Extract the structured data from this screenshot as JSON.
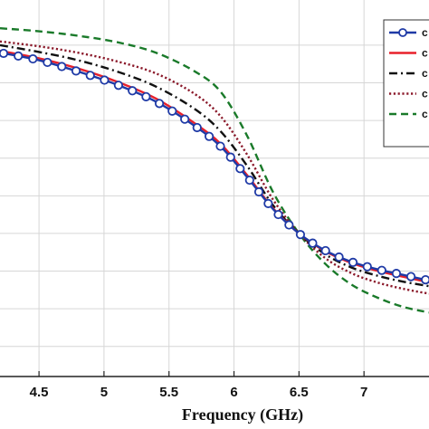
{
  "chart_data": {
    "type": "line",
    "xlabel": "Frequency (GHz)",
    "ylabel": "",
    "xlim": [
      4.2,
      7.5
    ],
    "ylim": [
      0,
      1
    ],
    "x_ticks": [
      "4.5",
      "5",
      "5.5",
      "6",
      "6.5",
      "7"
    ],
    "x_tick_values": [
      4.5,
      5,
      5.5,
      6,
      6.5,
      7
    ],
    "y_grid_values": [
      0.08,
      0.18,
      0.28,
      0.38,
      0.48,
      0.58,
      0.68,
      0.78,
      0.88
    ],
    "grid": true,
    "legend_position": "top-right",
    "series": [
      {
        "name": "c",
        "color": "#1f3aa6",
        "style": "solid-circle-markers",
        "x": [
          4.2,
          4.5,
          4.8,
          5.1,
          5.4,
          5.7,
          5.9,
          6.1,
          6.3,
          6.5,
          6.7,
          6.9,
          7.1,
          7.3,
          7.5
        ],
        "y": [
          0.86,
          0.84,
          0.81,
          0.775,
          0.73,
          0.665,
          0.61,
          0.53,
          0.445,
          0.38,
          0.335,
          0.305,
          0.285,
          0.27,
          0.255
        ]
      },
      {
        "name": "c",
        "color": "#e8212b",
        "style": "solid",
        "x": [
          4.2,
          4.5,
          4.8,
          5.1,
          5.4,
          5.7,
          5.9,
          6.1,
          6.3,
          6.5,
          6.7,
          6.9,
          7.1,
          7.3,
          7.5
        ],
        "y": [
          0.865,
          0.845,
          0.818,
          0.783,
          0.738,
          0.672,
          0.617,
          0.535,
          0.447,
          0.38,
          0.333,
          0.302,
          0.281,
          0.265,
          0.25
        ]
      },
      {
        "name": "c",
        "color": "#111111",
        "style": "dash-dot",
        "x": [
          4.2,
          4.5,
          4.8,
          5.1,
          5.4,
          5.7,
          5.9,
          6.1,
          6.3,
          6.5,
          6.7,
          6.9,
          7.1,
          7.3,
          7.5
        ],
        "y": [
          0.88,
          0.862,
          0.84,
          0.81,
          0.77,
          0.71,
          0.65,
          0.56,
          0.455,
          0.38,
          0.325,
          0.29,
          0.268,
          0.252,
          0.24
        ]
      },
      {
        "name": "c",
        "color": "#8b1a2b",
        "style": "dotted",
        "x": [
          4.2,
          4.5,
          4.8,
          5.1,
          5.4,
          5.7,
          5.9,
          6.1,
          6.3,
          6.5,
          6.7,
          6.9,
          7.1,
          7.3,
          7.5
        ],
        "y": [
          0.89,
          0.877,
          0.86,
          0.837,
          0.805,
          0.75,
          0.69,
          0.59,
          0.47,
          0.38,
          0.315,
          0.275,
          0.25,
          0.233,
          0.22
        ]
      },
      {
        "name": "c",
        "color": "#1a7a2a",
        "style": "dashed",
        "x": [
          4.2,
          4.5,
          4.8,
          5.1,
          5.4,
          5.7,
          5.9,
          6.1,
          6.3,
          6.5,
          6.7,
          6.9,
          7.1,
          7.3,
          7.5
        ],
        "y": [
          0.925,
          0.917,
          0.905,
          0.888,
          0.86,
          0.81,
          0.755,
          0.64,
          0.49,
          0.38,
          0.3,
          0.245,
          0.21,
          0.185,
          0.17
        ]
      }
    ]
  }
}
